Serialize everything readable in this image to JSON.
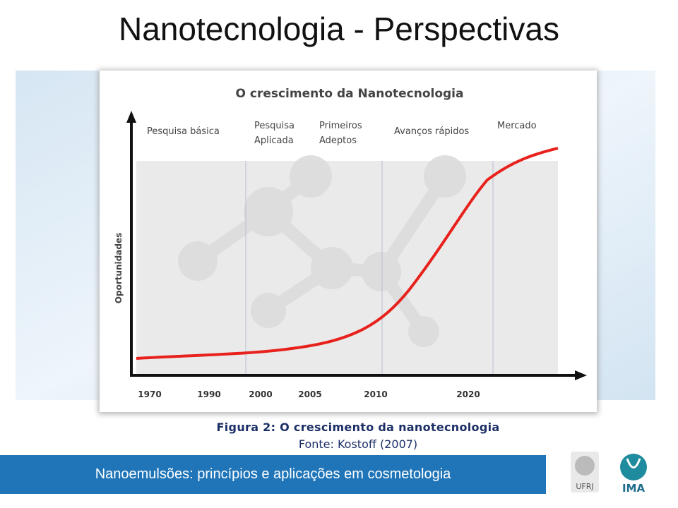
{
  "slide": {
    "title": "Nanotecnologia - Perspectivas"
  },
  "figure": {
    "title": "O crescimento da Nanotecnologia",
    "y_label": "Oportunidades",
    "phases": [
      "Pesquisa básica",
      "Pesquisa Aplicada",
      "Primeiros Adeptos",
      "Avanços rápidos",
      "Mercado"
    ],
    "x_labels": [
      "1970",
      "1990",
      "2000",
      "2005",
      "2010",
      "2020"
    ]
  },
  "caption": "Figura 2: O crescimento da nanotecnologia",
  "source": "Fonte: Kostoff (2007)",
  "footer": "Nanoemulsões: princípios e aplicações em cosmetologia",
  "logos": [
    "UFRJ",
    "IMA"
  ]
}
